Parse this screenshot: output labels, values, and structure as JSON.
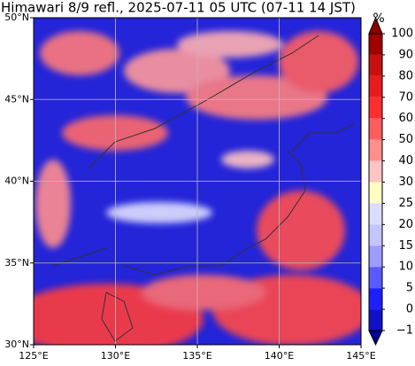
{
  "title": "Himawari 8/9 refl., 2025-07-11 05 UTC (07-11 14 JST)",
  "map": {
    "lat_labels": [
      "50°N",
      "45°N",
      "40°N",
      "35°N",
      "30°N"
    ],
    "lon_labels": [
      "125°E",
      "130°E",
      "135°E",
      "140°E",
      "145°E"
    ]
  },
  "colorbar": {
    "unit": "%",
    "levels": [
      100,
      90,
      80,
      70,
      60,
      50,
      40,
      30,
      25,
      20,
      15,
      10,
      5,
      0,
      {
        "value": -1,
        "label": "−1"
      }
    ],
    "colors": [
      "#a00000",
      "#c81010",
      "#e81c1c",
      "#ff2e2e",
      "#ff5c5c",
      "#ff8e8e",
      "#ffc4c4",
      "#ffffc4",
      "#dcdcff",
      "#c4c4ff",
      "#9c9cff",
      "#5a5aff",
      "#1e1eff",
      "#1010c8"
    ],
    "over_color": "#8c0000",
    "under_color": "#000090"
  }
}
